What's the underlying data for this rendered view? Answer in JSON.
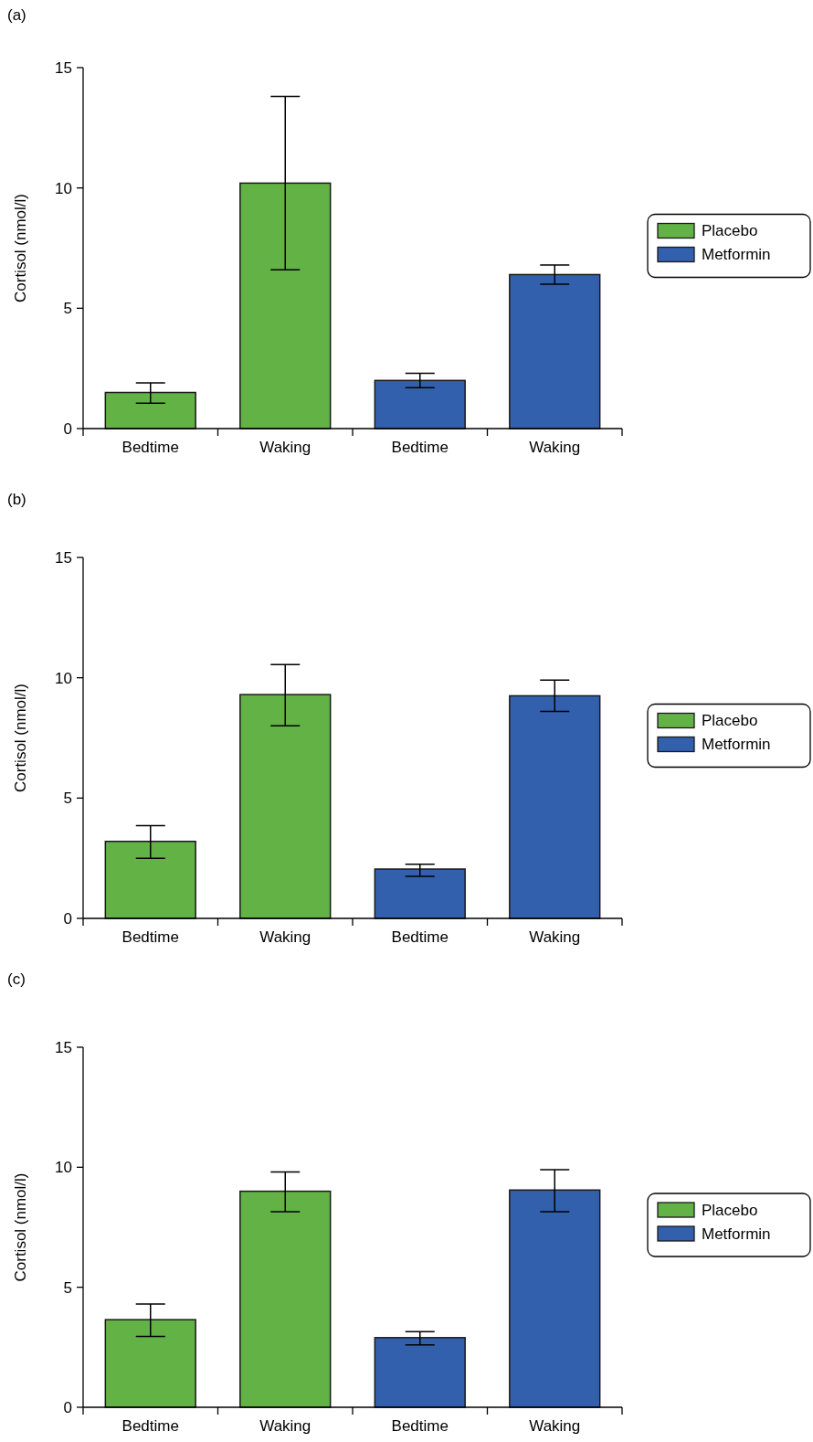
{
  "chart_data": [
    {
      "type": "bar",
      "title": "(a)",
      "ylabel": "Cortisol (nmol/l)",
      "categories": [
        "Bedtime",
        "Waking",
        "Bedtime",
        "Waking"
      ],
      "ylim": [
        0,
        15
      ],
      "yticks": [
        0,
        5,
        10,
        15
      ],
      "legend": "right",
      "series": [
        {
          "name": "Placebo",
          "color": "#63b246",
          "values": [
            1.5,
            10.2,
            null,
            null
          ],
          "errors": [
            [
              1.05,
              1.9
            ],
            [
              6.6,
              13.8
            ],
            null,
            null
          ]
        },
        {
          "name": "Metformin",
          "color": "#3360ad",
          "values": [
            null,
            null,
            2.0,
            6.4
          ],
          "errors": [
            null,
            null,
            [
              1.7,
              2.3
            ],
            [
              6.0,
              6.8
            ]
          ]
        }
      ]
    },
    {
      "type": "bar",
      "title": "(b)",
      "ylabel": "Cortisol (nmol/l)",
      "categories": [
        "Bedtime",
        "Waking",
        "Bedtime",
        "Waking"
      ],
      "ylim": [
        0,
        15
      ],
      "yticks": [
        0,
        5,
        10,
        15
      ],
      "legend": "right",
      "series": [
        {
          "name": "Placebo",
          "color": "#63b246",
          "values": [
            3.2,
            9.3,
            null,
            null
          ],
          "errors": [
            [
              2.5,
              3.85
            ],
            [
              8.0,
              10.55
            ],
            null,
            null
          ]
        },
        {
          "name": "Metformin",
          "color": "#3360ad",
          "values": [
            null,
            null,
            2.05,
            9.25
          ],
          "errors": [
            null,
            null,
            [
              1.75,
              2.25
            ],
            [
              8.6,
              9.9
            ]
          ]
        }
      ]
    },
    {
      "type": "bar",
      "title": "(c)",
      "ylabel": "Cortisol (nmol/l)",
      "categories": [
        "Bedtime",
        "Waking",
        "Bedtime",
        "Waking"
      ],
      "ylim": [
        0,
        15
      ],
      "yticks": [
        0,
        5,
        10,
        15
      ],
      "legend": "right",
      "series": [
        {
          "name": "Placebo",
          "color": "#63b246",
          "values": [
            3.65,
            9.0,
            null,
            null
          ],
          "errors": [
            [
              2.95,
              4.3
            ],
            [
              8.15,
              9.8
            ],
            null,
            null
          ]
        },
        {
          "name": "Metformin",
          "color": "#3360ad",
          "values": [
            null,
            null,
            2.9,
            9.05
          ],
          "errors": [
            null,
            null,
            [
              2.6,
              3.15
            ],
            [
              8.15,
              9.9
            ]
          ]
        }
      ]
    }
  ]
}
